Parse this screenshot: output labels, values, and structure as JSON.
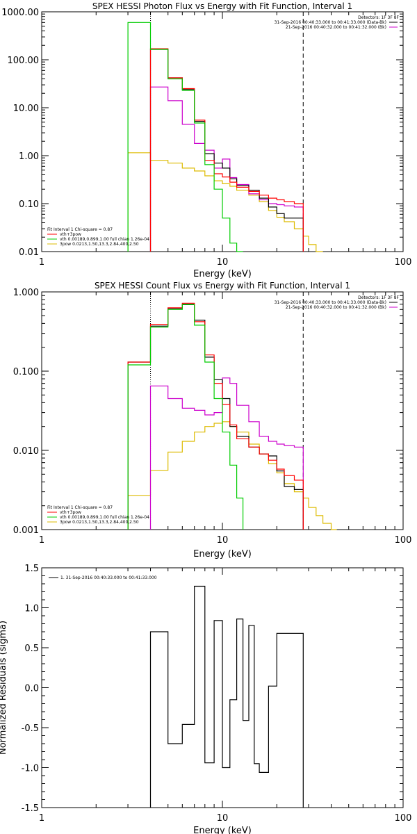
{
  "chart_data": [
    {
      "type": "line",
      "title": "SPEX HESSI Photon Flux vs Energy with Fit Function, Interval 1",
      "xlabel": "Energy (keV)",
      "ylabel": "",
      "xscale": "log",
      "yscale": "log",
      "xlim": [
        1,
        100
      ],
      "ylim": [
        0.01,
        1000
      ],
      "xticks": [
        "1",
        "10",
        "100"
      ],
      "yticks": [
        "0.01",
        "0.10",
        "1.00",
        "10.00",
        "100.00",
        "1000.00"
      ],
      "detectors_label": "Detectors: 1F 3F 8F",
      "time_labels": [
        "31-Sep-2016 00:40:33.000 to 00:41:33.000 (Data-Bk)",
        "21-Sep-2016 00:40:32.000 to 00:41:32.000 (Bk)"
      ],
      "legend": [
        "Fit Interval 1   Chi-square = 0.87",
        "vth+3pow",
        "vth 0.00189,0.899,1.00  full chian 1.26e-04",
        "3pow 0.0213,1.50,13.3,2.84,400,2.50"
      ],
      "vlines": [
        4,
        28
      ],
      "series": [
        {
          "name": "vth+3pow",
          "color": "#ff0000",
          "edges": [
            3,
            4,
            5,
            6,
            7,
            8,
            9,
            10,
            11,
            12,
            14,
            16,
            18,
            20,
            22,
            25,
            28
          ],
          "values": [
            null,
            170,
            42,
            25,
            5.5,
            0.8,
            0.42,
            0.36,
            0.28,
            0.22,
            0.18,
            0.15,
            0.13,
            0.12,
            0.11,
            0.1
          ]
        },
        {
          "name": "Data-Bk",
          "color": "#000000",
          "edges": [
            3,
            4,
            5,
            6,
            7,
            8,
            9,
            10,
            11,
            12,
            14,
            16,
            18,
            20,
            22,
            25,
            28
          ],
          "values": [
            null,
            165,
            42,
            24,
            5.2,
            1.1,
            0.7,
            0.55,
            0.33,
            0.24,
            0.19,
            0.13,
            0.085,
            0.062,
            0.05,
            0.05
          ]
        },
        {
          "name": "vth",
          "color": "#00cc00",
          "edges": [
            3,
            4,
            5,
            6,
            7,
            8,
            9,
            10,
            11,
            12,
            13
          ],
          "values": [
            600,
            165,
            40,
            23,
            4.8,
            0.65,
            0.2,
            0.05,
            0.015,
            0.005
          ]
        },
        {
          "name": "Bk",
          "color": "#cc00cc",
          "edges": [
            4,
            5,
            6,
            7,
            8,
            9,
            10,
            11,
            12,
            14,
            16,
            18,
            20,
            22,
            25,
            28
          ],
          "values": [
            27,
            14,
            4.5,
            1.8,
            1.3,
            0.55,
            0.85,
            0.35,
            0.25,
            0.16,
            0.12,
            0.1,
            0.095,
            0.09,
            0.085
          ]
        },
        {
          "name": "3pow",
          "color": "#ddbb00",
          "edges": [
            3,
            4,
            5,
            6,
            7,
            8,
            9,
            10,
            11,
            12,
            14,
            16,
            18,
            20,
            22,
            25,
            28,
            30,
            33,
            36
          ],
          "values": [
            1.15,
            0.8,
            0.7,
            0.55,
            0.48,
            0.38,
            0.3,
            0.26,
            0.23,
            0.19,
            0.15,
            0.11,
            0.072,
            0.052,
            0.042,
            0.03,
            0.021,
            0.014,
            0.009
          ]
        }
      ]
    },
    {
      "type": "line",
      "title": "SPEX HESSI Count Flux vs Energy with Fit Function, Interval 1",
      "xlabel": "Energy (keV)",
      "ylabel": "",
      "xscale": "log",
      "yscale": "log",
      "xlim": [
        1,
        100
      ],
      "ylim": [
        0.001,
        1
      ],
      "xticks": [
        "1",
        "10",
        "100"
      ],
      "yticks": [
        "0.001",
        "0.010",
        "0.100",
        "1.000"
      ],
      "detectors_label": "Detectors: 1F 3F 8F",
      "time_labels": [
        "31-Sep-2016 00:40:33.000 to 00:41:33.000 (Data-Bk)",
        "21-Sep-2016 00:40:32.000 to 00:41:32.000 (Bk)"
      ],
      "legend": [
        "Fit Interval 1   Chi-square = 0.87",
        "vth+3pow",
        "vth 0.00189,0.899,1.00  full chian 1.26e-04",
        "3pow 0.0213,1.50,13.3,2.84,400,2.50"
      ],
      "vlines": [
        4,
        28
      ],
      "series": [
        {
          "name": "vth+3pow",
          "color": "#ff0000",
          "edges": [
            3,
            4,
            5,
            6,
            7,
            8,
            9,
            10,
            11,
            12,
            14,
            16,
            18,
            20,
            22,
            25,
            28
          ],
          "values": [
            0.13,
            0.39,
            0.63,
            0.72,
            0.42,
            0.16,
            0.07,
            0.038,
            0.021,
            0.014,
            0.011,
            0.009,
            0.0075,
            0.0058,
            0.0048,
            0.0042
          ]
        },
        {
          "name": "Data-Bk",
          "color": "#000000",
          "edges": [
            3,
            4,
            5,
            6,
            7,
            8,
            9,
            10,
            11,
            12,
            14,
            16,
            18,
            20,
            22,
            25,
            28
          ],
          "values": [
            0.13,
            0.37,
            0.62,
            0.7,
            0.44,
            0.15,
            0.078,
            0.045,
            0.02,
            0.015,
            0.011,
            0.009,
            0.0085,
            0.0055,
            0.0035,
            0.0032
          ]
        },
        {
          "name": "vth",
          "color": "#00cc00",
          "edges": [
            3,
            4,
            5,
            6,
            7,
            8,
            9,
            10,
            11,
            12,
            13
          ],
          "values": [
            0.12,
            0.36,
            0.6,
            0.69,
            0.38,
            0.13,
            0.045,
            0.017,
            0.0065,
            0.0025
          ]
        },
        {
          "name": "Bk",
          "color": "#cc00cc",
          "edges": [
            4,
            5,
            6,
            7,
            8,
            9,
            10,
            11,
            12,
            14,
            16,
            18,
            20,
            22,
            25,
            28
          ],
          "values": [
            0.065,
            0.045,
            0.034,
            0.032,
            0.028,
            0.03,
            0.082,
            0.07,
            0.037,
            0.023,
            0.015,
            0.013,
            0.012,
            0.0115,
            0.011
          ]
        },
        {
          "name": "3pow",
          "color": "#ddbb00",
          "edges": [
            3,
            4,
            5,
            6,
            7,
            8,
            9,
            10,
            11,
            12,
            14,
            16,
            18,
            20,
            22,
            25,
            28,
            30,
            33,
            36,
            40,
            43
          ],
          "values": [
            0.0027,
            0.0056,
            0.0095,
            0.013,
            0.017,
            0.02,
            0.022,
            0.023,
            0.02,
            0.017,
            0.012,
            0.009,
            0.0068,
            0.0052,
            0.0038,
            0.003,
            0.0025,
            0.0019,
            0.0015,
            0.0012,
            0.001
          ]
        }
      ]
    },
    {
      "type": "line",
      "title": "",
      "xlabel": "Energy (keV)",
      "ylabel": "Normalized Residuals (sigma)",
      "xscale": "log",
      "yscale": "linear",
      "xlim": [
        1,
        100
      ],
      "ylim": [
        -1.5,
        1.5
      ],
      "xticks": [
        "1",
        "10",
        "100"
      ],
      "yticks": [
        "-1.5",
        "-1.0",
        "-0.5",
        "0.0",
        "0.5",
        "1.0",
        "1.5"
      ],
      "legend": [
        "1. 31-Sep-2016 00:40:33.000 to 00:41:33.000"
      ],
      "series": [
        {
          "name": "1. 31-Sep-2016 00:40:33.000 to 00:41:33.000",
          "color": "#000000",
          "edges": [
            4,
            5,
            6,
            7,
            8,
            9,
            10,
            11,
            12,
            13,
            14,
            15,
            16,
            18,
            20,
            22,
            25,
            28
          ],
          "values": [
            0.7,
            -0.7,
            -0.46,
            1.27,
            -0.94,
            0.84,
            -1.0,
            -0.15,
            0.86,
            -0.41,
            0.78,
            -0.95,
            -1.06,
            0.02,
            0.68,
            0.68,
            0.68
          ]
        }
      ]
    }
  ]
}
